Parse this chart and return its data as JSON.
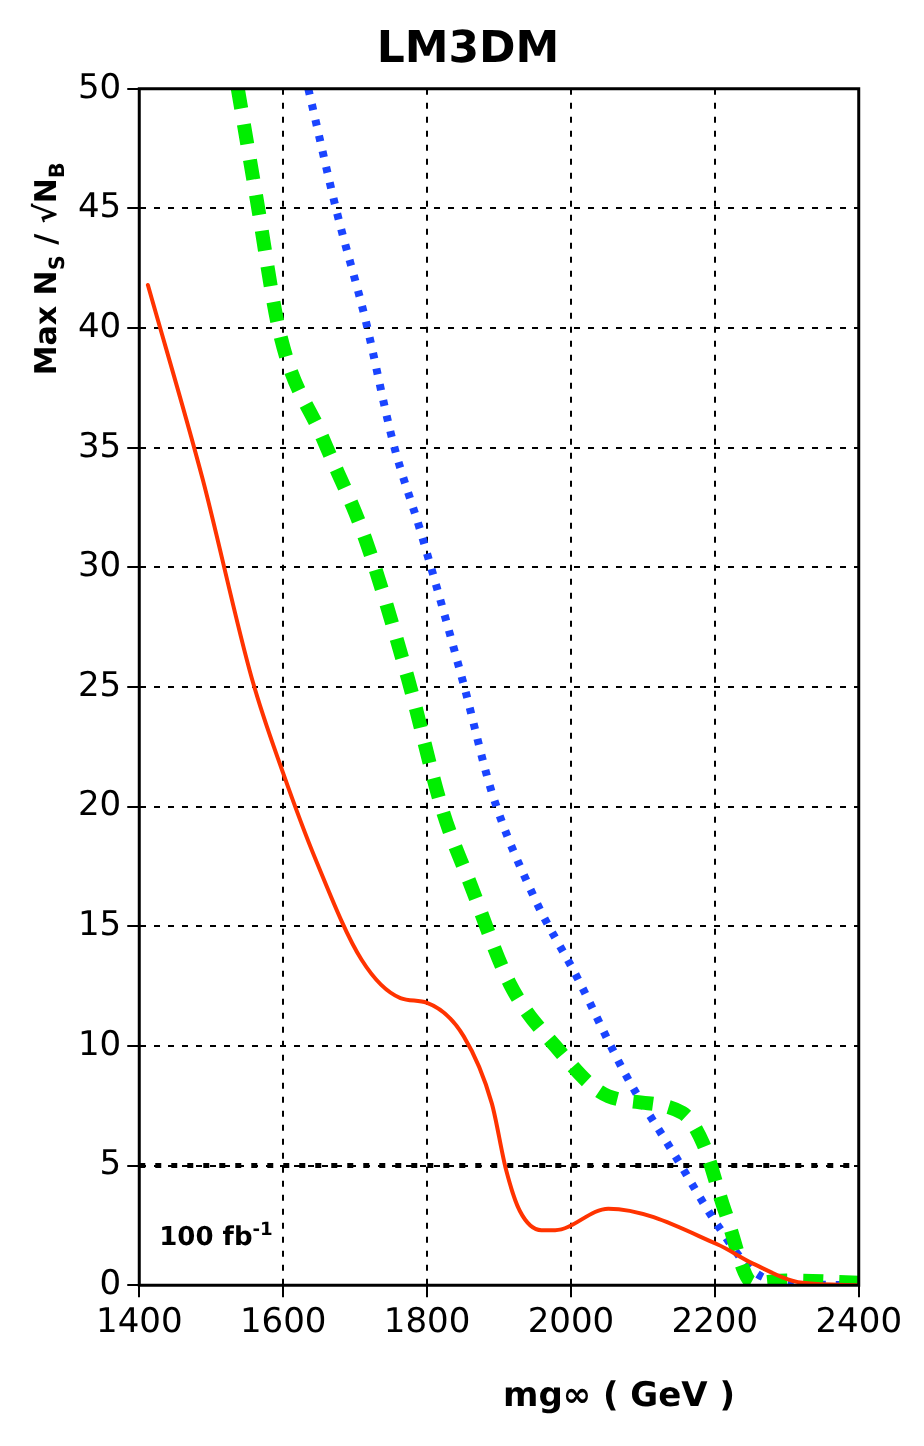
{
  "chart_data": {
    "type": "line",
    "title": "LM3DM",
    "xlabel": "mg∞ ( GeV )",
    "ylabel": "Max N$_{S}$ / √N$_{B}$",
    "xlim": [
      1400,
      2400
    ],
    "xticks": [
      1400,
      1600,
      1800,
      2000,
      2200,
      2400
    ],
    "ylim": [
      0,
      50
    ],
    "yticks": [
      0,
      5,
      10,
      15,
      20,
      25,
      30,
      35,
      40,
      45,
      50
    ],
    "grid": true,
    "marker": "none",
    "series": [
      {
        "color": "#ff3300",
        "line_style": "solid",
        "x": [
          1412,
          1488,
          1557,
          1600,
          1645,
          1709,
          1763,
          1800,
          1851,
          1890,
          1910,
          1929,
          1959,
          1978,
          2052,
          2204,
          2253,
          2322,
          2400
        ],
        "values": [
          41.8,
          33.7,
          25.3,
          21.4,
          17.8,
          13.6,
          12.0,
          11.8,
          10.4,
          7.6,
          4.8,
          3.1,
          2.3,
          2.3,
          3.2,
          1.7,
          0.9,
          0.1,
          0
        ]
      },
      {
        "color": "#00ee00",
        "line_style": "dashed",
        "x": [
          1537,
          1562,
          1596,
          1655,
          1714,
          1773,
          1822,
          1861,
          1915,
          1978,
          2052,
          2155,
          2184,
          2214,
          2253,
          2300,
          2400
        ],
        "values": [
          50,
          45.6,
          39.7,
          35.4,
          31.2,
          25.4,
          19.8,
          16.7,
          12.6,
          10.0,
          7.9,
          7.2,
          5.9,
          3.1,
          0.1,
          0.2,
          0.1
        ]
      },
      {
        "color": "#1a44ff",
        "line_style": "dotted",
        "x": [
          1635,
          1675,
          1714,
          1753,
          1792,
          1851,
          1890,
          1949,
          2008,
          2076,
          2145,
          2204,
          2253,
          2302,
          2400
        ],
        "values": [
          50,
          44.8,
          40.4,
          35.2,
          31.4,
          25.1,
          20.6,
          16.2,
          12.9,
          8.8,
          5.4,
          2.5,
          0.6,
          0.1,
          0
        ]
      }
    ],
    "ref_lines": [
      {
        "axis": "y",
        "value": 5,
        "color": "#000000",
        "line_style": "dotted"
      }
    ],
    "annotations": [
      "100 fb$^{-1}$"
    ]
  }
}
